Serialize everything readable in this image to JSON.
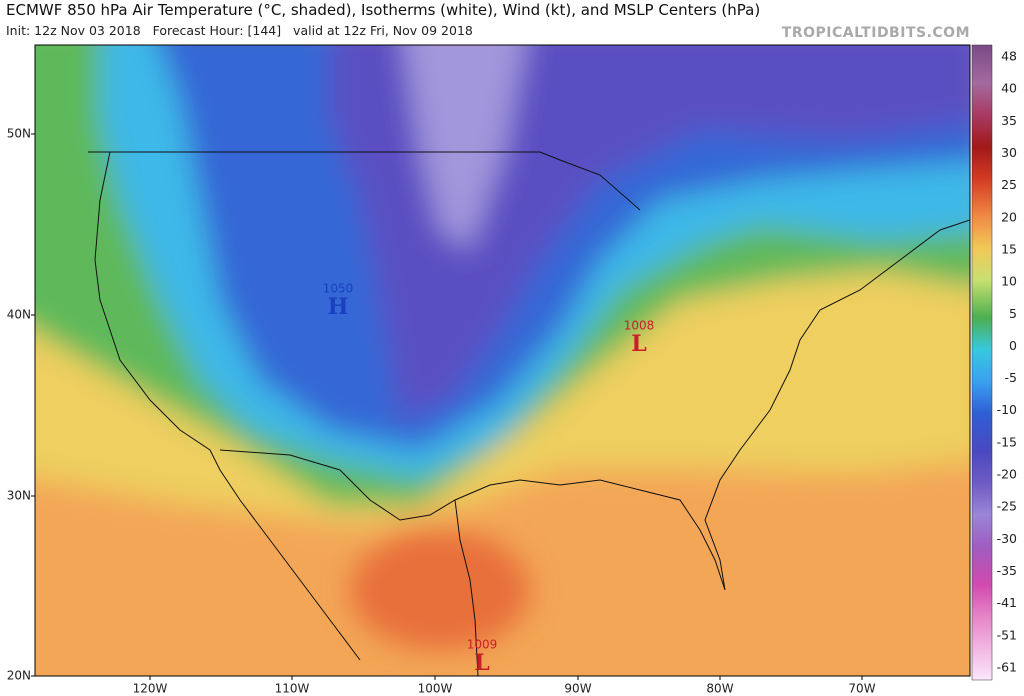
{
  "header": {
    "title": "ECMWF 850 hPa Air Temperature (°C, shaded), Isotherms (white), Wind (kt), and MSLP Centers (hPa)",
    "subtitle": "Init: 12z Nov 03 2018   Forecast Hour: [144]   valid at 12z Fri, Nov 09 2018",
    "source": "TROPICALTIDBITS.COM"
  },
  "colorbar": {
    "ticks": [
      48,
      40,
      35,
      30,
      25,
      20,
      15,
      10,
      5,
      0,
      -5,
      -10,
      -15,
      -20,
      -25,
      -30,
      -35,
      -41,
      -51,
      -61
    ]
  },
  "map": {
    "latitude_labels": [
      "50N",
      "40N",
      "30N",
      "20N"
    ],
    "longitude_labels": [
      "120W",
      "110W",
      "100W",
      "90W",
      "80W",
      "70W"
    ],
    "pressure_centers": [
      {
        "letter": "H",
        "value": "1050"
      },
      {
        "letter": "L",
        "value": "1008"
      },
      {
        "letter": "L",
        "value": "1009"
      }
    ]
  }
}
